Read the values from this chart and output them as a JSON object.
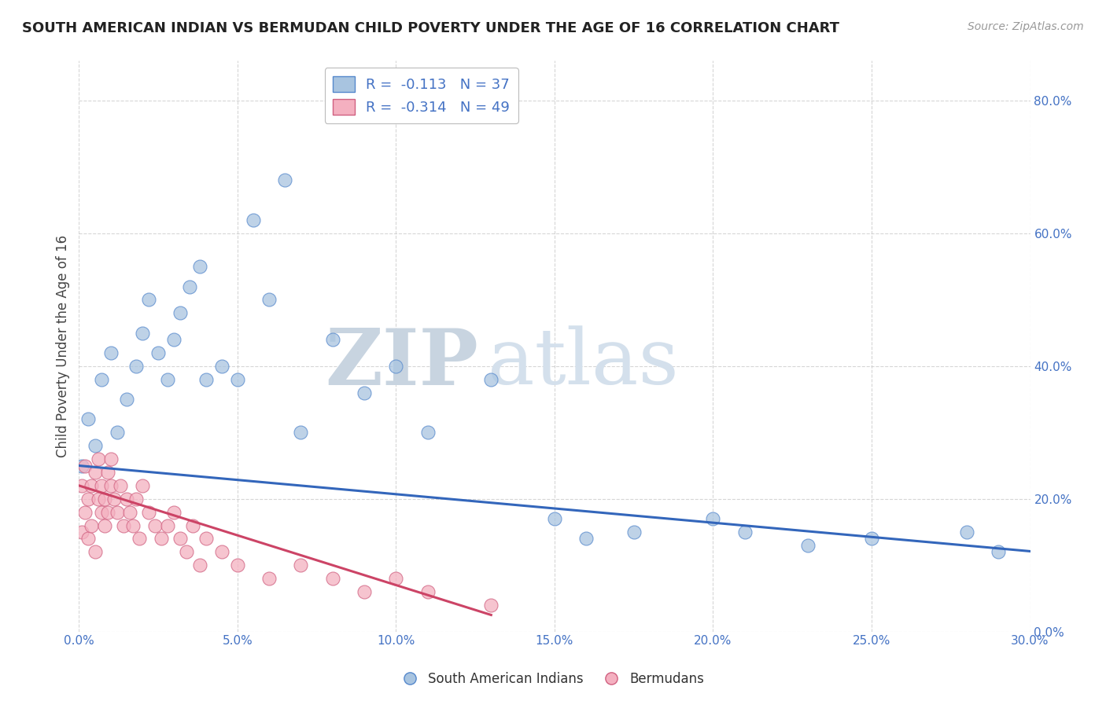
{
  "title": "SOUTH AMERICAN INDIAN VS BERMUDAN CHILD POVERTY UNDER THE AGE OF 16 CORRELATION CHART",
  "source": "Source: ZipAtlas.com",
  "ylabel": "Child Poverty Under the Age of 16",
  "xlim": [
    0.0,
    0.3
  ],
  "ylim": [
    0.0,
    0.86
  ],
  "xticks": [
    0.0,
    0.05,
    0.1,
    0.15,
    0.2,
    0.25,
    0.3
  ],
  "yticks_right": [
    0.0,
    0.2,
    0.4,
    0.6,
    0.8
  ],
  "legend_r1": "R =  -0.113   N = 37",
  "legend_r2": "R =  -0.314   N = 49",
  "blue_color": "#a8c4e0",
  "pink_color": "#f4b0c0",
  "blue_edge_color": "#5588cc",
  "pink_edge_color": "#d06080",
  "blue_line_color": "#3366bb",
  "pink_line_color": "#cc4466",
  "legend_labels": [
    "South American Indians",
    "Bermudans"
  ],
  "background_color": "#ffffff",
  "grid_color": "#cccccc",
  "blue_scatter_x": [
    0.001,
    0.003,
    0.005,
    0.007,
    0.01,
    0.012,
    0.015,
    0.018,
    0.02,
    0.022,
    0.025,
    0.028,
    0.03,
    0.032,
    0.035,
    0.038,
    0.04,
    0.045,
    0.05,
    0.055,
    0.06,
    0.065,
    0.07,
    0.08,
    0.09,
    0.1,
    0.11,
    0.13,
    0.15,
    0.16,
    0.175,
    0.2,
    0.21,
    0.23,
    0.25,
    0.28,
    0.29
  ],
  "blue_scatter_y": [
    0.25,
    0.32,
    0.28,
    0.38,
    0.42,
    0.3,
    0.35,
    0.4,
    0.45,
    0.5,
    0.42,
    0.38,
    0.44,
    0.48,
    0.52,
    0.55,
    0.38,
    0.4,
    0.38,
    0.62,
    0.5,
    0.68,
    0.3,
    0.44,
    0.36,
    0.4,
    0.3,
    0.38,
    0.17,
    0.14,
    0.15,
    0.17,
    0.15,
    0.13,
    0.14,
    0.15,
    0.12
  ],
  "pink_scatter_x": [
    0.001,
    0.001,
    0.002,
    0.002,
    0.003,
    0.003,
    0.004,
    0.004,
    0.005,
    0.005,
    0.006,
    0.006,
    0.007,
    0.007,
    0.008,
    0.008,
    0.009,
    0.009,
    0.01,
    0.01,
    0.011,
    0.012,
    0.013,
    0.014,
    0.015,
    0.016,
    0.017,
    0.018,
    0.019,
    0.02,
    0.022,
    0.024,
    0.026,
    0.028,
    0.03,
    0.032,
    0.034,
    0.036,
    0.038,
    0.04,
    0.045,
    0.05,
    0.06,
    0.07,
    0.08,
    0.09,
    0.1,
    0.11,
    0.13
  ],
  "pink_scatter_y": [
    0.22,
    0.15,
    0.18,
    0.25,
    0.2,
    0.14,
    0.22,
    0.16,
    0.24,
    0.12,
    0.26,
    0.2,
    0.18,
    0.22,
    0.2,
    0.16,
    0.24,
    0.18,
    0.22,
    0.26,
    0.2,
    0.18,
    0.22,
    0.16,
    0.2,
    0.18,
    0.16,
    0.2,
    0.14,
    0.22,
    0.18,
    0.16,
    0.14,
    0.16,
    0.18,
    0.14,
    0.12,
    0.16,
    0.1,
    0.14,
    0.12,
    0.1,
    0.08,
    0.1,
    0.08,
    0.06,
    0.08,
    0.06,
    0.04
  ]
}
